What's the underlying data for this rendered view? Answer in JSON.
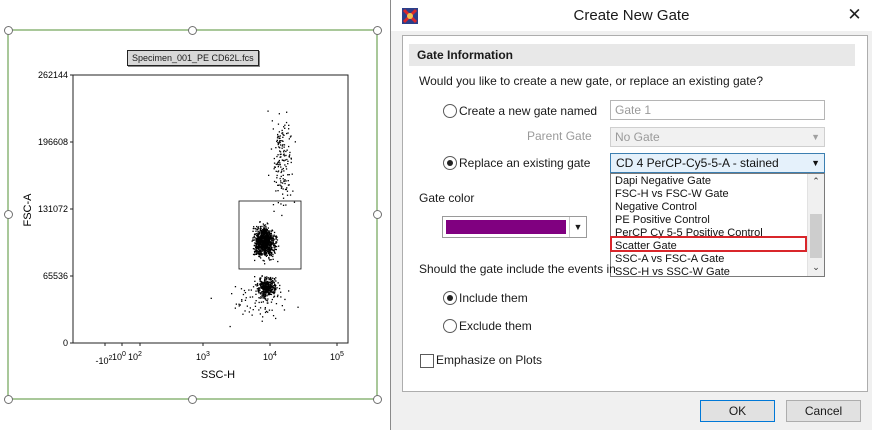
{
  "plot": {
    "file_label": "Specimen_001_PE CD62L.fcs",
    "y_axis_label": "FSC-A",
    "x_axis_label": "SSC-H",
    "y_ticks": [
      "262144",
      "196608",
      "131072",
      "65536",
      "0"
    ],
    "x_ticks": [
      "-10",
      "10",
      "10",
      "10",
      "10",
      "10"
    ],
    "x_tick_exponents": [
      "2",
      "0",
      "2",
      "3",
      "4",
      "5"
    ],
    "gate_color": "#000000"
  },
  "chart_data": {
    "type": "scatter",
    "xlabel": "SSC-H",
    "ylabel": "FSC-A",
    "y_ticks": [
      262144,
      196608,
      131072,
      65536,
      0
    ],
    "x_scale": "biexponential",
    "x_ticks": [
      "-10^2",
      "10^0",
      "10^2",
      "10^3",
      "10^4",
      "10^5"
    ],
    "clusters": [
      {
        "x_center": 7000,
        "y_center": 100000,
        "density": "dense"
      },
      {
        "x_center": 8000,
        "y_center": 45000,
        "density": "medium"
      },
      {
        "x_center": 12000,
        "y_center": 165000,
        "density": "sparse"
      }
    ],
    "rectangle_gate": {
      "x_range": [
        3500,
        25000
      ],
      "y_range": [
        55000,
        140000
      ]
    }
  },
  "dialog": {
    "title": "Create New Gate",
    "close_glyph": "✕",
    "section_title": "Gate Information",
    "question": "Would you like to create a new gate, or replace an existing gate?",
    "option_new_label": "Create a new gate named",
    "new_gate_name": "Gate 1",
    "parent_gate_label": "Parent Gate",
    "parent_gate_value": "No Gate",
    "option_replace_label": "Replace an existing gate",
    "replace_selected": "CD 4 PerCP-Cy5-5-A - stained",
    "dropdown_items": [
      "Dapi Negative Gate",
      "FSC-H vs FSC-W Gate",
      "Negative Control",
      "PE Positive Control",
      "PerCP Cy 5-5 Positive Control",
      "Scatter Gate",
      "SSC-A vs FSC-A Gate",
      "SSC-H vs SSC-W Gate"
    ],
    "highlighted_item": "Scatter Gate",
    "highlight_color": "#d9262b",
    "gate_color_label": "Gate color",
    "gate_color_value": "#800080",
    "include_question": "Should the gate include the events in",
    "include_label": "Include them",
    "exclude_label": "Exclude them",
    "emphasize_label": "Emphasize on Plots",
    "ok_label": "OK",
    "cancel_label": "Cancel",
    "app_icon": "fcs-express-icon"
  }
}
